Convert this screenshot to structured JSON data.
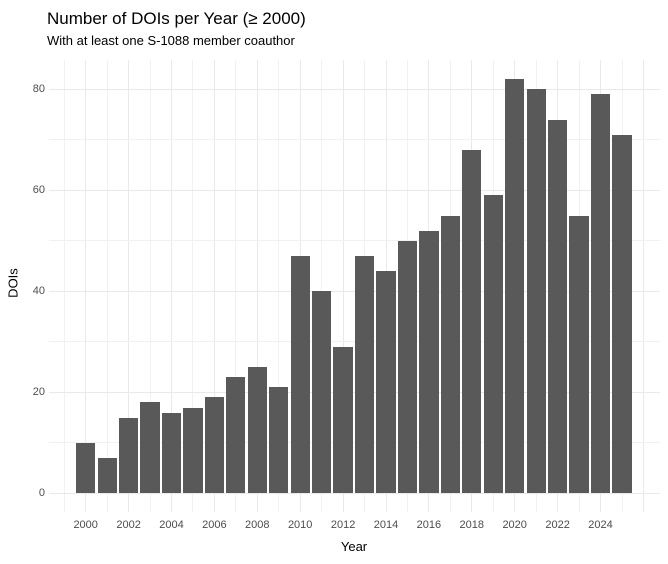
{
  "chart_data": {
    "type": "bar",
    "title": "Number of DOIs per Year (≥ 2000)",
    "subtitle": "With at least one S-1088 member coauthor",
    "xlabel": "Year",
    "ylabel": "DOIs",
    "categories": [
      2000,
      2001,
      2002,
      2003,
      2004,
      2005,
      2006,
      2007,
      2008,
      2009,
      2010,
      2011,
      2012,
      2013,
      2014,
      2015,
      2016,
      2017,
      2018,
      2019,
      2020,
      2021,
      2022,
      2023,
      2024,
      2025
    ],
    "values": [
      10,
      7,
      15,
      18,
      16,
      17,
      19,
      23,
      25,
      21,
      47,
      40,
      29,
      47,
      44,
      50,
      52,
      55,
      68,
      59,
      82,
      80,
      74,
      55,
      79,
      71
    ],
    "x_tick_labels": [
      "2000",
      "2002",
      "2004",
      "2006",
      "2008",
      "2010",
      "2012",
      "2014",
      "2016",
      "2018",
      "2020",
      "2022",
      "2024"
    ],
    "y_major_ticks": [
      0,
      20,
      40,
      60,
      80
    ],
    "y_minor_ticks": [
      10,
      30,
      50,
      70
    ],
    "ylim": [
      0,
      86
    ],
    "bar_color": "#595959",
    "grid_major_color": "#e9e9e9",
    "grid_minor_color": "#f1f1f1",
    "grid": true,
    "legend_position": "none"
  }
}
